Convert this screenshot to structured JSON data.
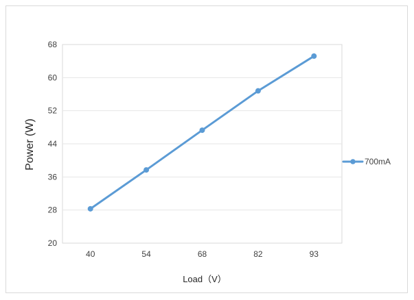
{
  "chart_data": {
    "type": "line",
    "x": [
      "40",
      "54",
      "68",
      "82",
      "93"
    ],
    "series": [
      {
        "name": "700mA",
        "values": [
          28.3,
          37.7,
          47.3,
          56.8,
          65.2
        ],
        "color": "#5b9bd5"
      }
    ],
    "xlabel": "Load（V）",
    "ylabel": "Power (W)",
    "ylim": [
      20,
      68
    ],
    "yticks": [
      "20",
      "28",
      "36",
      "44",
      "52",
      "60",
      "68"
    ],
    "grid": true,
    "legend": "right",
    "colors": {
      "line": "#5b9bd5",
      "grid": "#e6e6e6",
      "plot_border": "#d9d9d9",
      "frame_border": "#d9d9d9"
    }
  }
}
